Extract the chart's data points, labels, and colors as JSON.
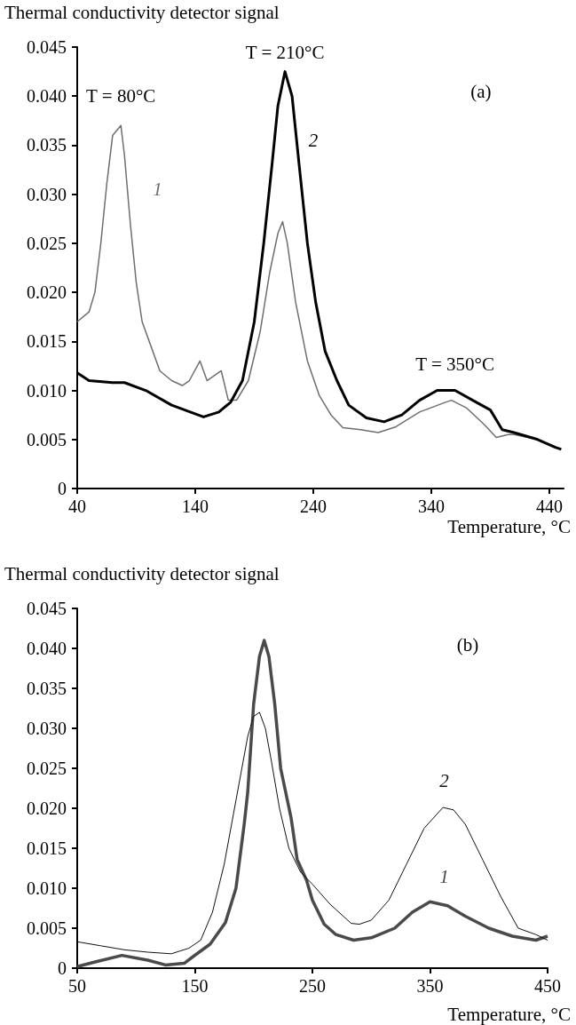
{
  "chart_data": [
    {
      "type": "line",
      "title": "(a)",
      "ylabel": "Thermal conductivity detector signal",
      "xlabel": "Temperature, °C",
      "xlim": [
        40,
        452
      ],
      "xticks": [
        40,
        140,
        240,
        340,
        440
      ],
      "ylim": [
        0,
        0.045
      ],
      "yticks": [
        0,
        {
          "value": 0.005,
          "label": "0.005"
        },
        {
          "value": 0.01,
          "label": "0.010"
        },
        {
          "value": 0.015,
          "label": "0.015"
        },
        {
          "value": 0.02,
          "label": "0.020"
        },
        {
          "value": 0.025,
          "label": "0.025"
        },
        {
          "value": 0.03,
          "label": "0.030"
        },
        {
          "value": 0.035,
          "label": "0.035"
        },
        {
          "value": 0.04,
          "label": "0.040"
        },
        {
          "value": 0.045,
          "label": "0.045"
        }
      ],
      "grid": false,
      "marker": "none",
      "series": [
        {
          "name": "1",
          "color": "#6e6e6e",
          "x": [
            40,
            50,
            55,
            60,
            65,
            70,
            77,
            80,
            85,
            90,
            95,
            104,
            110,
            120,
            129,
            135,
            144,
            150,
            162,
            168,
            175,
            185,
            195,
            203,
            210,
            214,
            218,
            225,
            235,
            245,
            255,
            265,
            280,
            295,
            310,
            330,
            350,
            357,
            370,
            385,
            395,
            405,
            410,
            430,
            450
          ],
          "values": [
            0.017,
            0.018,
            0.02,
            0.025,
            0.031,
            0.036,
            0.037,
            0.034,
            0.027,
            0.021,
            0.017,
            0.014,
            0.012,
            0.011,
            0.0105,
            0.011,
            0.013,
            0.011,
            0.012,
            0.009,
            0.009,
            0.011,
            0.016,
            0.022,
            0.026,
            0.0272,
            0.025,
            0.019,
            0.013,
            0.0095,
            0.0075,
            0.0062,
            0.006,
            0.0057,
            0.0063,
            0.0078,
            0.0087,
            0.009,
            0.0082,
            0.0065,
            0.0052,
            0.0055,
            0.0055,
            0.005,
            0.004
          ]
        },
        {
          "name": "2",
          "color": "#000000",
          "x": [
            40,
            50,
            70,
            80,
            98,
            120,
            147,
            160,
            170,
            180,
            190,
            198,
            205,
            210,
            216,
            222,
            228,
            235,
            242,
            250,
            260,
            270,
            285,
            300,
            315,
            330,
            345,
            360,
            375,
            390,
            400,
            410,
            430,
            445,
            450
          ],
          "values": [
            0.0118,
            0.011,
            0.0108,
            0.0108,
            0.01,
            0.0085,
            0.0073,
            0.0078,
            0.0088,
            0.011,
            0.017,
            0.025,
            0.033,
            0.039,
            0.0425,
            0.04,
            0.033,
            0.025,
            0.019,
            0.014,
            0.011,
            0.0085,
            0.0072,
            0.0068,
            0.0075,
            0.009,
            0.01,
            0.01,
            0.009,
            0.008,
            0.006,
            0.0057,
            0.005,
            0.0042,
            0.004
          ]
        }
      ],
      "annotations": [
        "T = 80°C",
        "T = 210°C",
        "T = 350°C"
      ]
    },
    {
      "type": "line",
      "title": "(b)",
      "ylabel": "Thermal conductivity detector signal",
      "xlabel": "Temperature, °C",
      "xlim": [
        50,
        450
      ],
      "xticks": [
        50,
        150,
        250,
        350,
        450
      ],
      "ylim": [
        0,
        0.045
      ],
      "yticks": [
        0,
        {
          "value": 0.005,
          "label": "0.005"
        },
        {
          "value": 0.01,
          "label": "0.010"
        },
        {
          "value": 0.015,
          "label": "0.015"
        },
        {
          "value": 0.02,
          "label": "0.020"
        },
        {
          "value": 0.025,
          "label": "0.025"
        },
        {
          "value": 0.03,
          "label": "0.030"
        },
        {
          "value": 0.035,
          "label": "0.035"
        },
        {
          "value": 0.04,
          "label": "0.040"
        },
        {
          "value": 0.045,
          "label": "0.045"
        }
      ],
      "grid": false,
      "marker": "none",
      "series": [
        {
          "name": "1",
          "color": "#4a4a4a",
          "x": [
            50,
            66,
            88,
            110,
            125,
            141,
            149,
            163,
            176,
            185,
            192,
            195,
            200,
            205,
            209,
            213,
            218,
            223,
            232,
            237,
            245,
            250,
            260,
            270,
            285,
            300,
            320,
            335,
            350,
            365,
            380,
            400,
            420,
            440,
            450
          ],
          "values": [
            0.0002,
            0.0008,
            0.0016,
            0.001,
            0.0004,
            0.0006,
            0.0015,
            0.003,
            0.0057,
            0.01,
            0.018,
            0.022,
            0.033,
            0.039,
            0.041,
            0.039,
            0.033,
            0.025,
            0.0187,
            0.0136,
            0.011,
            0.0085,
            0.0055,
            0.0042,
            0.0035,
            0.0038,
            0.005,
            0.007,
            0.0083,
            0.0078,
            0.0065,
            0.005,
            0.004,
            0.0035,
            0.004
          ]
        },
        {
          "name": "2",
          "color": "#111111",
          "x": [
            50,
            70,
            90,
            110,
            130,
            145,
            155,
            165,
            175,
            185,
            195,
            200,
            205,
            210,
            215,
            222,
            230,
            240,
            250,
            265,
            283,
            290,
            300,
            315,
            330,
            345,
            361,
            370,
            380,
            395,
            410,
            425,
            440,
            450
          ],
          "values": [
            0.0033,
            0.0028,
            0.0023,
            0.002,
            0.0018,
            0.0025,
            0.0035,
            0.007,
            0.013,
            0.021,
            0.029,
            0.0315,
            0.032,
            0.03,
            0.026,
            0.02,
            0.015,
            0.012,
            0.0105,
            0.008,
            0.0056,
            0.0055,
            0.006,
            0.0085,
            0.013,
            0.0175,
            0.0201,
            0.0198,
            0.018,
            0.0135,
            0.009,
            0.005,
            0.0042,
            0.0035
          ]
        }
      ]
    }
  ]
}
